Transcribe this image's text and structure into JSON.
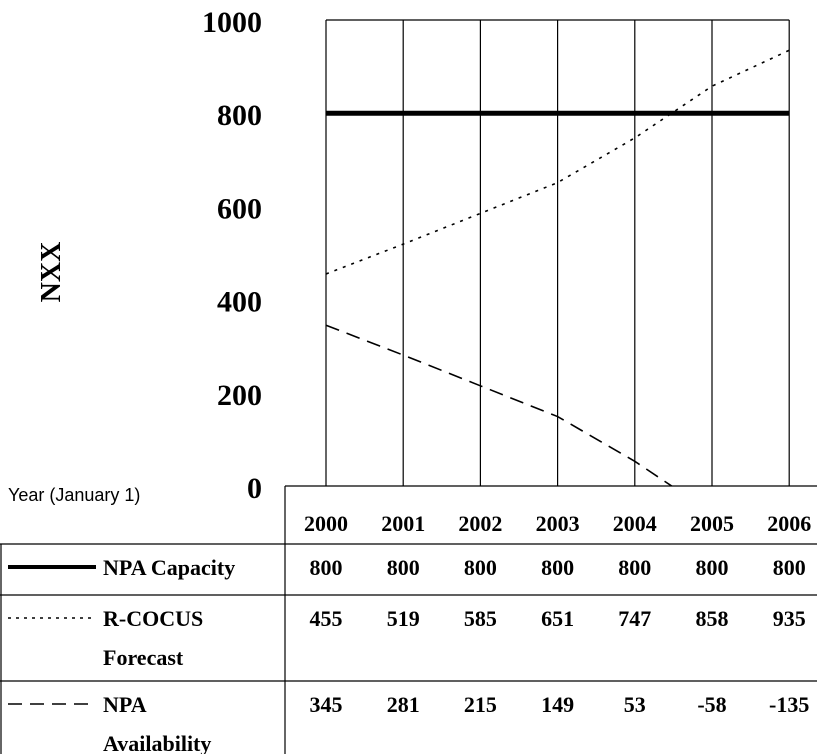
{
  "chart_data": {
    "type": "line",
    "ylabel": "NXX",
    "xlabel": "Year (January 1)",
    "ylim": [
      0,
      1000
    ],
    "yticks": [
      "0",
      "200",
      "400",
      "600",
      "800",
      "1000"
    ],
    "categories": [
      "2000",
      "2001",
      "2002",
      "2003",
      "2004",
      "2005",
      "2006"
    ],
    "grid": "vertical lines at each year",
    "series": [
      {
        "name": "NPA Capacity",
        "name_lines": [
          "NPA Capacity"
        ],
        "style": "solid-thick",
        "values": [
          800,
          800,
          800,
          800,
          800,
          800,
          800
        ],
        "labels": [
          "800",
          "800",
          "800",
          "800",
          "800",
          "800",
          "800"
        ]
      },
      {
        "name": "R-COCUS Forecast",
        "name_lines": [
          "R-COCUS",
          "Forecast"
        ],
        "style": "dotted",
        "values": [
          455,
          519,
          585,
          651,
          747,
          858,
          935
        ],
        "labels": [
          "455",
          "519",
          "585",
          "651",
          "747",
          "858",
          "935"
        ]
      },
      {
        "name": "NPA Availability",
        "name_lines": [
          "NPA",
          "Availability"
        ],
        "style": "dashed",
        "values": [
          345,
          281,
          215,
          149,
          53,
          -58,
          -135
        ],
        "labels": [
          "345",
          "281",
          "215",
          "149",
          "53",
          "-58",
          "-135"
        ]
      }
    ],
    "legend": "table below chart"
  },
  "colors": {
    "ink": "#000000",
    "background": "#ffffff"
  }
}
